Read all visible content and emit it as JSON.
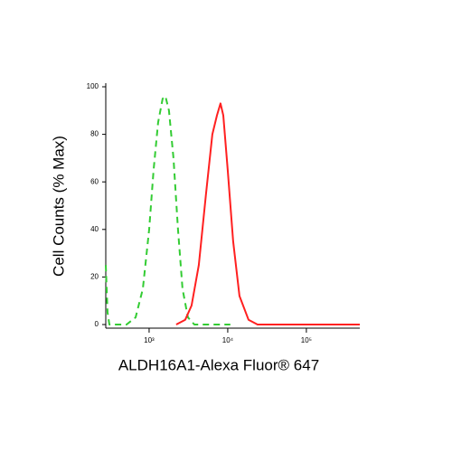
{
  "chart_data": {
    "type": "line",
    "x_label": "ALDH16A1-Alexa Fluor® 647",
    "y_label": "Cell Counts (% Max)",
    "xscale": "log",
    "xlim": [
      281,
      478000
    ],
    "ylim": [
      0,
      100
    ],
    "xticks": [
      {
        "value": 1000,
        "label": "10³"
      },
      {
        "value": 10000,
        "label": "10⁴"
      },
      {
        "value": 100000,
        "label": "10⁵"
      }
    ],
    "yticks": [
      0,
      20,
      40,
      60,
      80,
      100
    ],
    "series": [
      {
        "color": "#33cc33",
        "dashed": true,
        "x": [
          281,
          296,
          312,
          516,
          673,
          831,
          1000,
          1141,
          1303,
          1487,
          1611,
          1790,
          2043,
          2332,
          2662,
          3120,
          3760,
          10800
        ],
        "values": [
          25,
          5,
          0,
          0,
          3,
          15,
          40,
          65,
          85,
          95,
          96,
          90,
          70,
          40,
          15,
          3,
          0,
          0
        ]
      },
      {
        "color": "#ff2020",
        "dashed": false,
        "x": [
          2212,
          2883,
          3467,
          4284,
          5297,
          6378,
          7285,
          8094,
          8770,
          10000,
          11720,
          14100,
          18360,
          23930,
          478000
        ],
        "values": [
          0,
          2,
          8,
          25,
          55,
          80,
          88,
          93,
          88,
          65,
          35,
          12,
          2,
          0,
          0
        ]
      }
    ]
  }
}
